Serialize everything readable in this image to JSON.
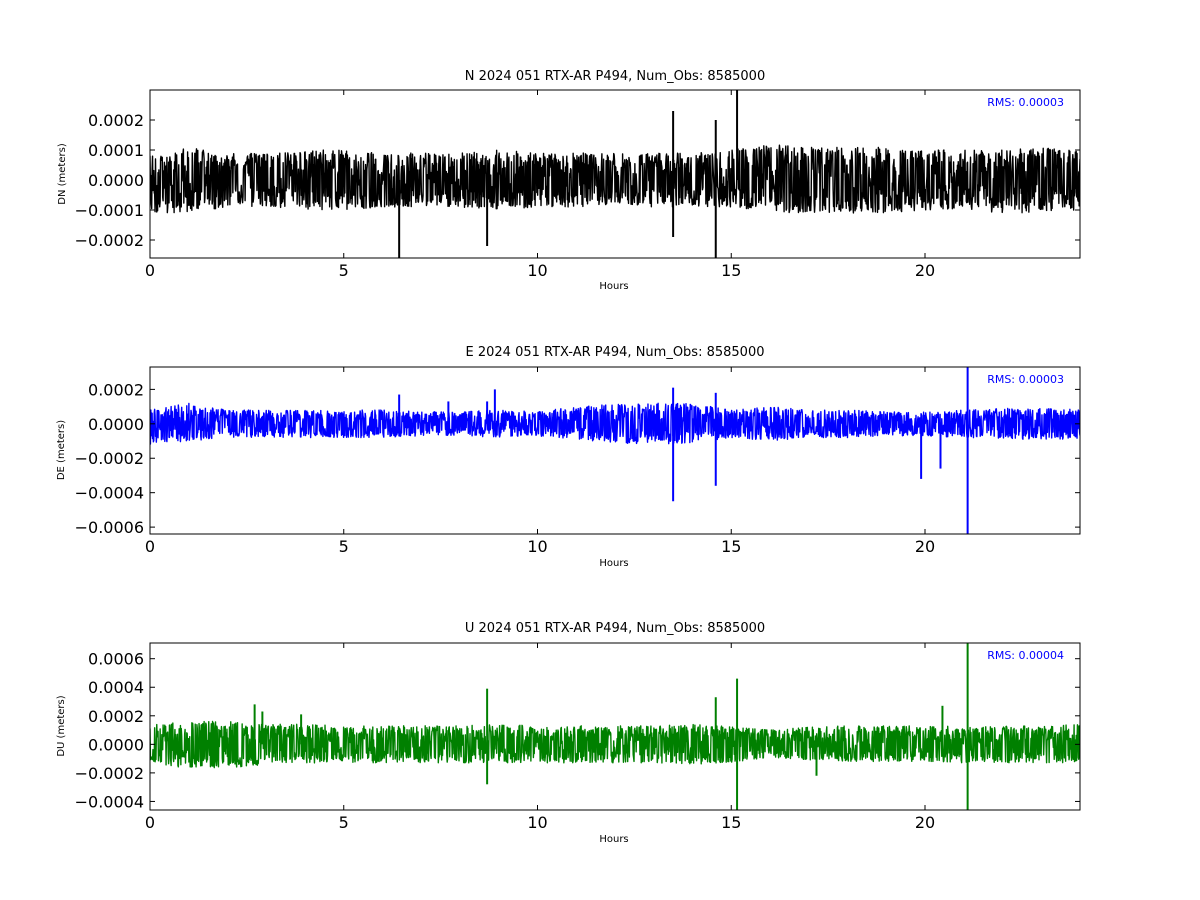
{
  "chart_data": [
    {
      "type": "line",
      "title": "N 2024 051 RTX-AR  P494, Num_Obs: 8585000",
      "xlabel": "Hours",
      "ylabel": "DN (meters)",
      "xlim": [
        0,
        24
      ],
      "ylim": [
        -0.00026,
        0.0003
      ],
      "xticks": [
        0,
        5,
        10,
        15,
        20
      ],
      "xtick_labels": [
        "0",
        "5",
        "10",
        "15",
        "20"
      ],
      "yticks": [
        0.0002,
        0.0001,
        0.0,
        -0.0001,
        -0.0002
      ],
      "ytick_labels": [
        "0.0002",
        "0.0001",
        "0.0000",
        "−0.0001",
        "−0.0002"
      ],
      "grid": false,
      "color": "#000000",
      "rms_text": "RMS:  0.00003",
      "series": [
        {
          "envelope": {
            "x": [
              0,
              1,
              2,
              3,
              4,
              5,
              6,
              7,
              8,
              9,
              10,
              11,
              12,
              13,
              14,
              15,
              16,
              17,
              18,
              19,
              20,
              21,
              22,
              23,
              24
            ],
            "upper": [
              9e-05,
              0.00011,
              9e-05,
              9e-05,
              0.0001,
              0.0001,
              9e-05,
              9e-05,
              9e-05,
              0.0001,
              9e-05,
              9e-05,
              9e-05,
              9e-05,
              9e-05,
              0.0001,
              0.00012,
              0.00011,
              0.00011,
              0.00011,
              0.0001,
              0.0001,
              0.0001,
              0.00011,
              0.0001
            ],
            "lower": [
              -0.00011,
              -0.00011,
              -9e-05,
              -9e-05,
              -0.0001,
              -0.0001,
              -9e-05,
              -9e-05,
              -9e-05,
              -0.0001,
              -9e-05,
              -9e-05,
              -8e-05,
              -9e-05,
              -9e-05,
              -9e-05,
              -0.00011,
              -0.00011,
              -0.00011,
              -0.00011,
              -0.0001,
              -0.0001,
              -0.00011,
              -0.00011,
              -0.0001
            ]
          },
          "spikes": [
            {
              "x": 6.43,
              "y": -0.00026
            },
            {
              "x": 8.7,
              "y": -0.00022
            },
            {
              "x": 13.5,
              "y": 0.00023
            },
            {
              "x": 13.5,
              "y": -0.00019
            },
            {
              "x": 14.6,
              "y": 0.0002
            },
            {
              "x": 14.6,
              "y": -0.00026
            },
            {
              "x": 15.15,
              "y": 0.0003
            }
          ]
        }
      ]
    },
    {
      "type": "line",
      "title": "E 2024 051 RTX-AR  P494, Num_Obs: 8585000",
      "xlabel": "Hours",
      "ylabel": "DE (meters)",
      "xlim": [
        0,
        24
      ],
      "ylim": [
        -0.00064,
        0.00033
      ],
      "xticks": [
        0,
        5,
        10,
        15,
        20
      ],
      "xtick_labels": [
        "0",
        "5",
        "10",
        "15",
        "20"
      ],
      "yticks": [
        0.0002,
        0.0,
        -0.0002,
        -0.0004,
        -0.0006
      ],
      "ytick_labels": [
        "0.0002",
        "0.0000",
        "−0.0002",
        "−0.0004",
        "−0.0006"
      ],
      "grid": false,
      "color": "#0000ff",
      "rms_text": "RMS:  0.00003",
      "series": [
        {
          "envelope": {
            "x": [
              0,
              1,
              2,
              3,
              4,
              5,
              6,
              7,
              8,
              9,
              10,
              11,
              12,
              13,
              14,
              15,
              16,
              17,
              18,
              19,
              20,
              21,
              22,
              23,
              24
            ],
            "upper": [
              8e-05,
              0.00012,
              8e-05,
              8e-05,
              8e-05,
              8e-05,
              8e-05,
              7e-05,
              7e-05,
              8e-05,
              7e-05,
              0.0001,
              0.00012,
              0.00012,
              0.00012,
              8e-05,
              0.0001,
              8e-05,
              8e-05,
              7e-05,
              7e-05,
              8e-05,
              9e-05,
              9e-05,
              9e-05
            ],
            "lower": [
              -0.00012,
              -0.0001,
              -8e-05,
              -8e-05,
              -8e-05,
              -8e-05,
              -8e-05,
              -7e-05,
              -7e-05,
              -8e-05,
              -7e-05,
              -9e-05,
              -0.00011,
              -0.00012,
              -0.00011,
              -8e-05,
              -0.0001,
              -8e-05,
              -8e-05,
              -7e-05,
              -7e-05,
              -8e-05,
              -9e-05,
              -9e-05,
              -9e-05
            ]
          },
          "spikes": [
            {
              "x": 6.43,
              "y": 0.00017
            },
            {
              "x": 7.7,
              "y": 0.00013
            },
            {
              "x": 8.7,
              "y": 0.00013
            },
            {
              "x": 8.9,
              "y": 0.0002
            },
            {
              "x": 13.5,
              "y": 0.00021
            },
            {
              "x": 13.5,
              "y": -0.00045
            },
            {
              "x": 14.6,
              "y": 0.00018
            },
            {
              "x": 14.6,
              "y": -0.00036
            },
            {
              "x": 19.9,
              "y": -0.00032
            },
            {
              "x": 20.4,
              "y": -0.00026
            },
            {
              "x": 21.1,
              "y": 0.00033
            },
            {
              "x": 21.1,
              "y": -0.00064
            }
          ]
        }
      ]
    },
    {
      "type": "line",
      "title": "U 2024 051 RTX-AR  P494, Num_Obs: 8585000",
      "xlabel": "Hours",
      "ylabel": "DU (meters)",
      "xlim": [
        0,
        24
      ],
      "ylim": [
        -0.00046,
        0.00071
      ],
      "xticks": [
        0,
        5,
        10,
        15,
        20
      ],
      "xtick_labels": [
        "0",
        "5",
        "10",
        "15",
        "20"
      ],
      "yticks": [
        0.0006,
        0.0004,
        0.0002,
        0.0,
        -0.0002,
        -0.0004
      ],
      "ytick_labels": [
        "0.0006",
        "0.0004",
        "0.0002",
        "0.0000",
        "−0.0002",
        "−0.0004"
      ],
      "grid": false,
      "color": "#008000",
      "rms_text": "RMS:  0.00004",
      "series": [
        {
          "envelope": {
            "x": [
              0,
              1,
              2,
              3,
              4,
              5,
              6,
              7,
              8,
              9,
              10,
              11,
              12,
              13,
              14,
              15,
              16,
              17,
              18,
              19,
              20,
              21,
              22,
              23,
              24
            ],
            "upper": [
              0.00015,
              0.00016,
              0.00016,
              0.00014,
              0.00014,
              0.00013,
              0.00013,
              0.00013,
              0.00013,
              0.00014,
              0.00013,
              0.00013,
              0.00013,
              0.00013,
              0.00014,
              0.00013,
              0.0001,
              0.00012,
              0.00013,
              0.00013,
              0.00013,
              0.00013,
              0.00013,
              0.00013,
              0.00014
            ],
            "lower": [
              -0.00013,
              -0.00017,
              -0.00017,
              -0.00014,
              -0.00013,
              -0.00013,
              -0.00013,
              -0.00013,
              -0.00013,
              -0.00013,
              -0.00013,
              -0.00013,
              -0.00013,
              -0.00013,
              -0.00014,
              -0.00013,
              -9e-05,
              -0.00011,
              -0.00012,
              -0.00012,
              -0.00012,
              -0.00013,
              -0.00013,
              -0.00013,
              -0.00013
            ]
          },
          "spikes": [
            {
              "x": 2.7,
              "y": 0.00028
            },
            {
              "x": 2.9,
              "y": 0.00023
            },
            {
              "x": 3.9,
              "y": 0.00021
            },
            {
              "x": 8.7,
              "y": 0.00039
            },
            {
              "x": 8.7,
              "y": -0.00028
            },
            {
              "x": 14.6,
              "y": 0.00033
            },
            {
              "x": 15.15,
              "y": 0.00046
            },
            {
              "x": 15.15,
              "y": -0.00046
            },
            {
              "x": 17.2,
              "y": -0.00022
            },
            {
              "x": 20.45,
              "y": 0.00027
            },
            {
              "x": 21.1,
              "y": 0.00071
            },
            {
              "x": 21.1,
              "y": -0.00046
            }
          ]
        }
      ]
    }
  ]
}
